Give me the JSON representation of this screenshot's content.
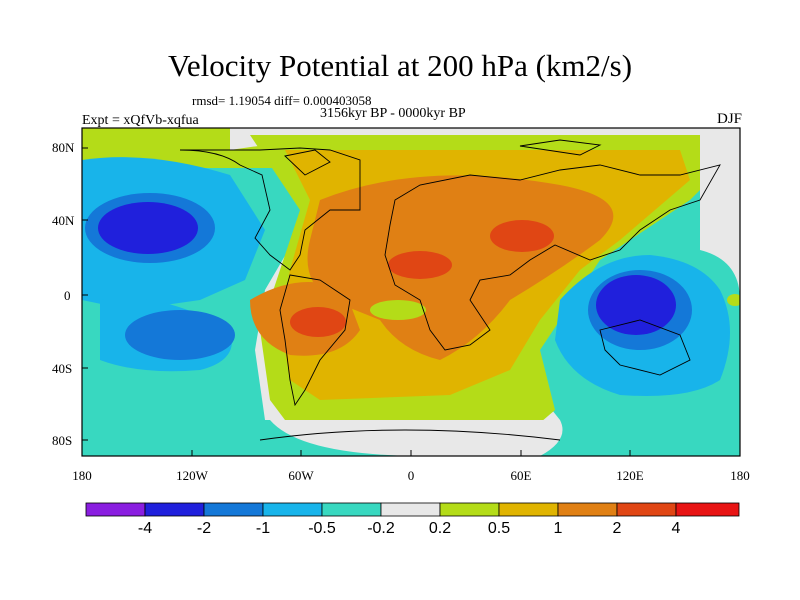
{
  "map": {
    "title": "Velocity Potential at 200 hPa (km2/s)",
    "stats": "rmsd= 1.19054 diff= 0.000403058",
    "period": "3156kyr BP - 0000kyr BP",
    "experiment": "Expt = xQfVb-xqfua",
    "season": "DJF",
    "lat_labels": [
      "80N",
      "40N",
      "0",
      "40S",
      "80S"
    ],
    "lon_labels": [
      "180",
      "120W",
      "60W",
      "0",
      "60E",
      "120E",
      "180"
    ],
    "colorbar": {
      "labels": [
        "-4",
        "-2",
        "-1",
        "-0.5",
        "-0.2",
        "0.2",
        "0.5",
        "1",
        "2",
        "4"
      ],
      "colors": [
        "#8a1ee0",
        "#2020dc",
        "#1478d8",
        "#18b4ea",
        "#38d8c0",
        "#e8e8e8",
        "#b4dc18",
        "#e0b400",
        "#e08014",
        "#e04614",
        "#e81414"
      ]
    }
  }
}
